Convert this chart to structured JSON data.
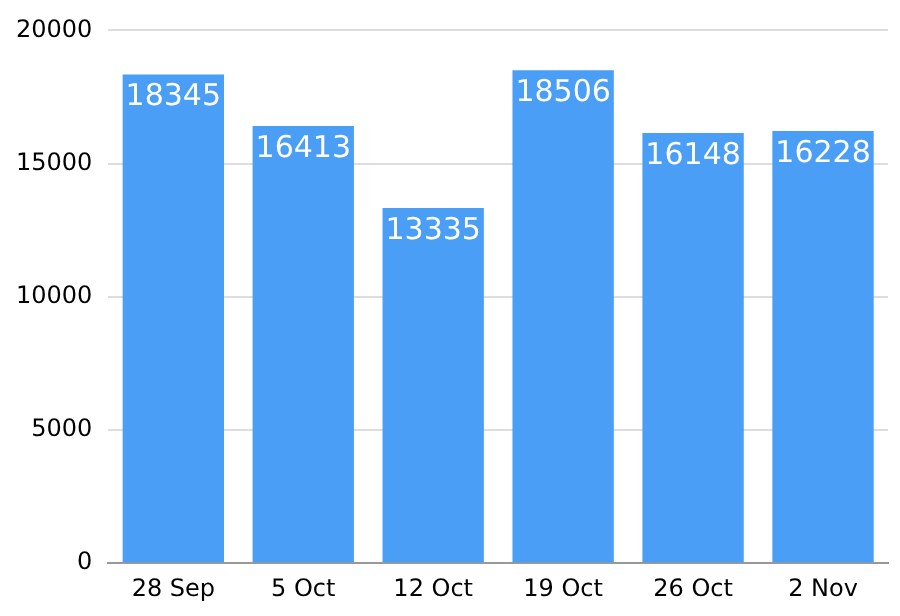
{
  "chart_data": {
    "type": "bar",
    "categories": [
      "28 Sep",
      "5 Oct",
      "12 Oct",
      "19 Oct",
      "26 Oct",
      "2 Nov"
    ],
    "values": [
      18345,
      16413,
      13335,
      18506,
      16148,
      16228
    ],
    "color": "#4a9ef5",
    "ylim": [
      0,
      20000
    ],
    "yticks": [
      0,
      5000,
      10000,
      15000,
      20000
    ],
    "grid": "y",
    "legend": false,
    "data_labels": true
  }
}
